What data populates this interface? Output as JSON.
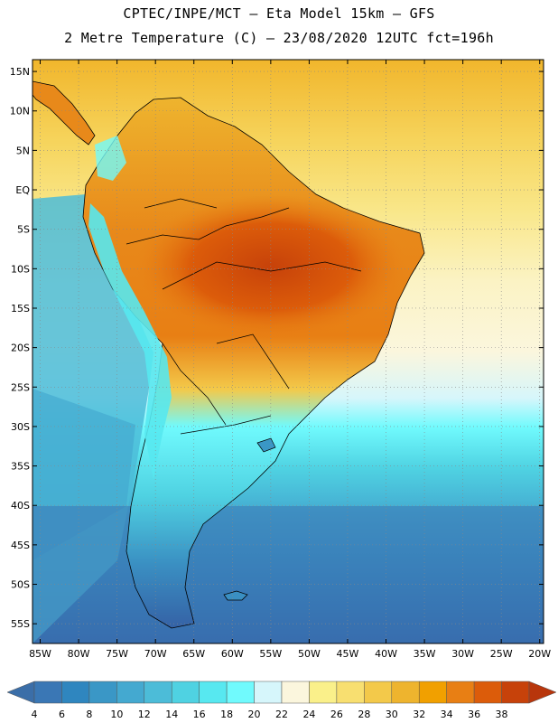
{
  "header": {
    "line1": "CPTEC/INPE/MCT –  Eta Model 15km – GFS",
    "line2": "2 Metre Temperature (C) – 23/08/2020 12UTC fct=196h"
  },
  "map": {
    "lat_labels": [
      "15N",
      "10N",
      "5N",
      "EQ",
      "5S",
      "10S",
      "15S",
      "20S",
      "25S",
      "30S",
      "35S",
      "40S",
      "45S",
      "50S",
      "55S"
    ],
    "lat_values": [
      15,
      10,
      5,
      0,
      -5,
      -10,
      -15,
      -20,
      -25,
      -30,
      -35,
      -40,
      -45,
      -50,
      -55
    ],
    "lon_labels": [
      "85W",
      "80W",
      "75W",
      "70W",
      "65W",
      "60W",
      "55W",
      "50W",
      "45W",
      "40W",
      "35W",
      "30W",
      "25W",
      "20W"
    ],
    "lon_values": [
      -85,
      -80,
      -75,
      -70,
      -65,
      -60,
      -55,
      -50,
      -45,
      -40,
      -35,
      -30,
      -25,
      -20
    ],
    "lat_range": [
      -57.5,
      16.5
    ],
    "lon_range": [
      -86,
      -19.5
    ]
  },
  "colorbar": {
    "labels": [
      "4",
      "6",
      "8",
      "10",
      "12",
      "14",
      "16",
      "18",
      "20",
      "22",
      "24",
      "26",
      "28",
      "30",
      "32",
      "34",
      "36",
      "38"
    ],
    "colors": [
      "#3a77b5",
      "#2f86bf",
      "#3a97c6",
      "#44a9d0",
      "#4cbcd8",
      "#4fd2e2",
      "#57e8f0",
      "#70fafd",
      "#d6f6fb",
      "#fbf6dd",
      "#faf08a",
      "#f8df70",
      "#f3c94a",
      "#eeb42e",
      "#f1a000",
      "#e87f14",
      "#dc5c0a",
      "#c7420a"
    ],
    "under_color": "#3b6ea8",
    "over_color": "#b8360c"
  }
}
